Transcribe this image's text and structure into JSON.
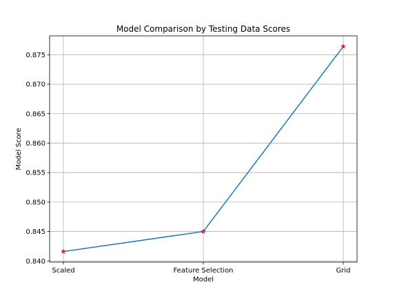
{
  "chart_data": {
    "type": "line",
    "title": "Model Comparison by Testing Data Scores",
    "xlabel": "Model",
    "ylabel": "Model Score",
    "categories": [
      "Scaled",
      "Feature Selection",
      "Grid"
    ],
    "series": [
      {
        "values": [
          0.8416,
          0.845,
          0.8764
        ]
      }
    ],
    "ylim": [
      0.8398,
      0.8782
    ],
    "yticks": [
      "0.840",
      "0.845",
      "0.850",
      "0.855",
      "0.860",
      "0.865",
      "0.870",
      "0.875"
    ],
    "grid": true,
    "line_color": "#1f77b4",
    "marker_color": "#d62728",
    "marker": "star"
  }
}
